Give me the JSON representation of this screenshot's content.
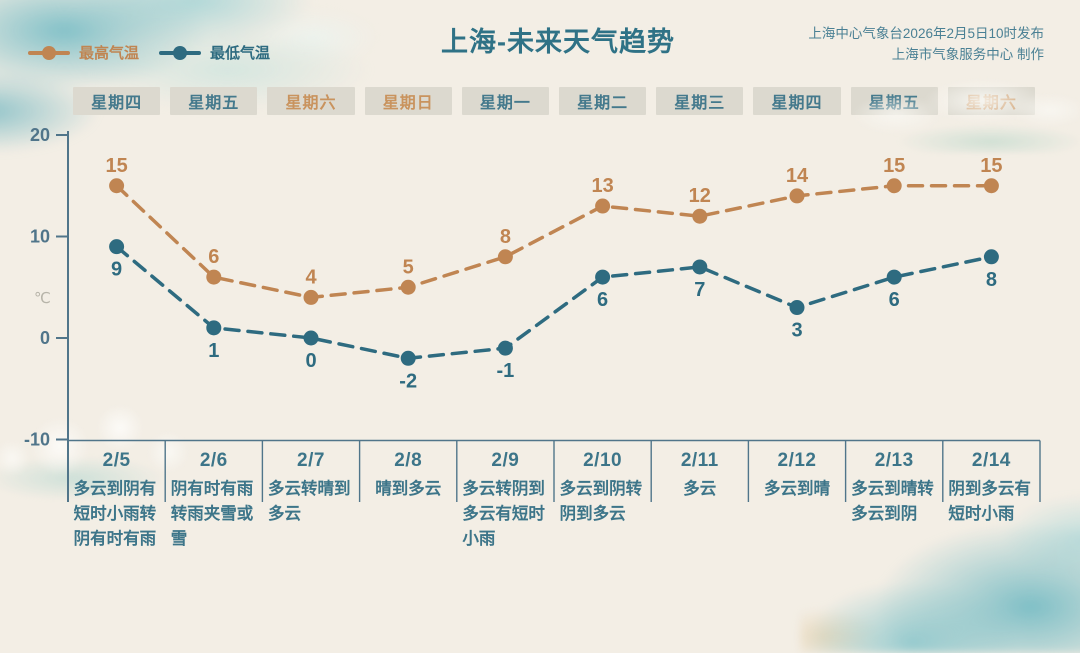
{
  "header": {
    "title": "上海-未来天气趋势",
    "source_line1": "上海中心气象台2026年2月5日10时发布",
    "source_line2": "上海市气象服务中心 制作",
    "legend": [
      {
        "label": "最高气温",
        "color": "#c08552"
      },
      {
        "label": "最低气温",
        "color": "#2e6b80"
      }
    ]
  },
  "weekdays": [
    {
      "label": "星期四",
      "weekend": false
    },
    {
      "label": "星期五",
      "weekend": false
    },
    {
      "label": "星期六",
      "weekend": true
    },
    {
      "label": "星期日",
      "weekend": true
    },
    {
      "label": "星期一",
      "weekend": false
    },
    {
      "label": "星期二",
      "weekend": false
    },
    {
      "label": "星期三",
      "weekend": false
    },
    {
      "label": "星期四",
      "weekend": false
    },
    {
      "label": "星期五",
      "weekend": false
    },
    {
      "label": "星期六",
      "weekend": true
    }
  ],
  "chart_data": {
    "type": "line",
    "title": "上海-未来天气趋势",
    "x": [
      "2/5",
      "2/6",
      "2/7",
      "2/8",
      "2/9",
      "2/10",
      "2/11",
      "2/12",
      "2/13",
      "2/14"
    ],
    "series": [
      {
        "name": "最高气温",
        "color": "#c08552",
        "values": [
          15,
          6,
          4,
          5,
          8,
          13,
          12,
          14,
          15,
          15
        ],
        "label_position": "above"
      },
      {
        "name": "最低气温",
        "color": "#2e6b80",
        "values": [
          9,
          1,
          0,
          -2,
          -1,
          6,
          7,
          3,
          6,
          8
        ],
        "label_position": "below"
      }
    ],
    "ylabel": "℃",
    "yticks": [
      20,
      10,
      0,
      -10
    ],
    "ylim": [
      -13,
      22
    ],
    "grid": false,
    "line_style": "dashed",
    "legend_position": "top-left"
  },
  "table": {
    "dates": [
      "2/5",
      "2/6",
      "2/7",
      "2/8",
      "2/9",
      "2/10",
      "2/11",
      "2/12",
      "2/13",
      "2/14"
    ],
    "descriptions": [
      "多云到阴有短时小雨转阴有时有雨",
      "阴有时有雨转雨夹雪或雪",
      "多云转晴到多云",
      "晴到多云",
      "多云转阴到多云有短时小雨",
      "多云到阴转阴到多云",
      "多云",
      "多云到晴",
      "多云到晴转多云到阴",
      "阴到多云有短时小雨"
    ]
  },
  "colors": {
    "background": "#f3eee5",
    "high_series": "#c08552",
    "low_series": "#2e6b80",
    "title_text": "#2f7286",
    "source_text": "#4a8094",
    "weekday_text": "#44798c",
    "weekend_text": "#c9935e",
    "weekday_box_bg": "#dcd9cf",
    "axis": "#50758a",
    "unit_text": "#b7b4a9",
    "table_text": "#3d7589"
  }
}
